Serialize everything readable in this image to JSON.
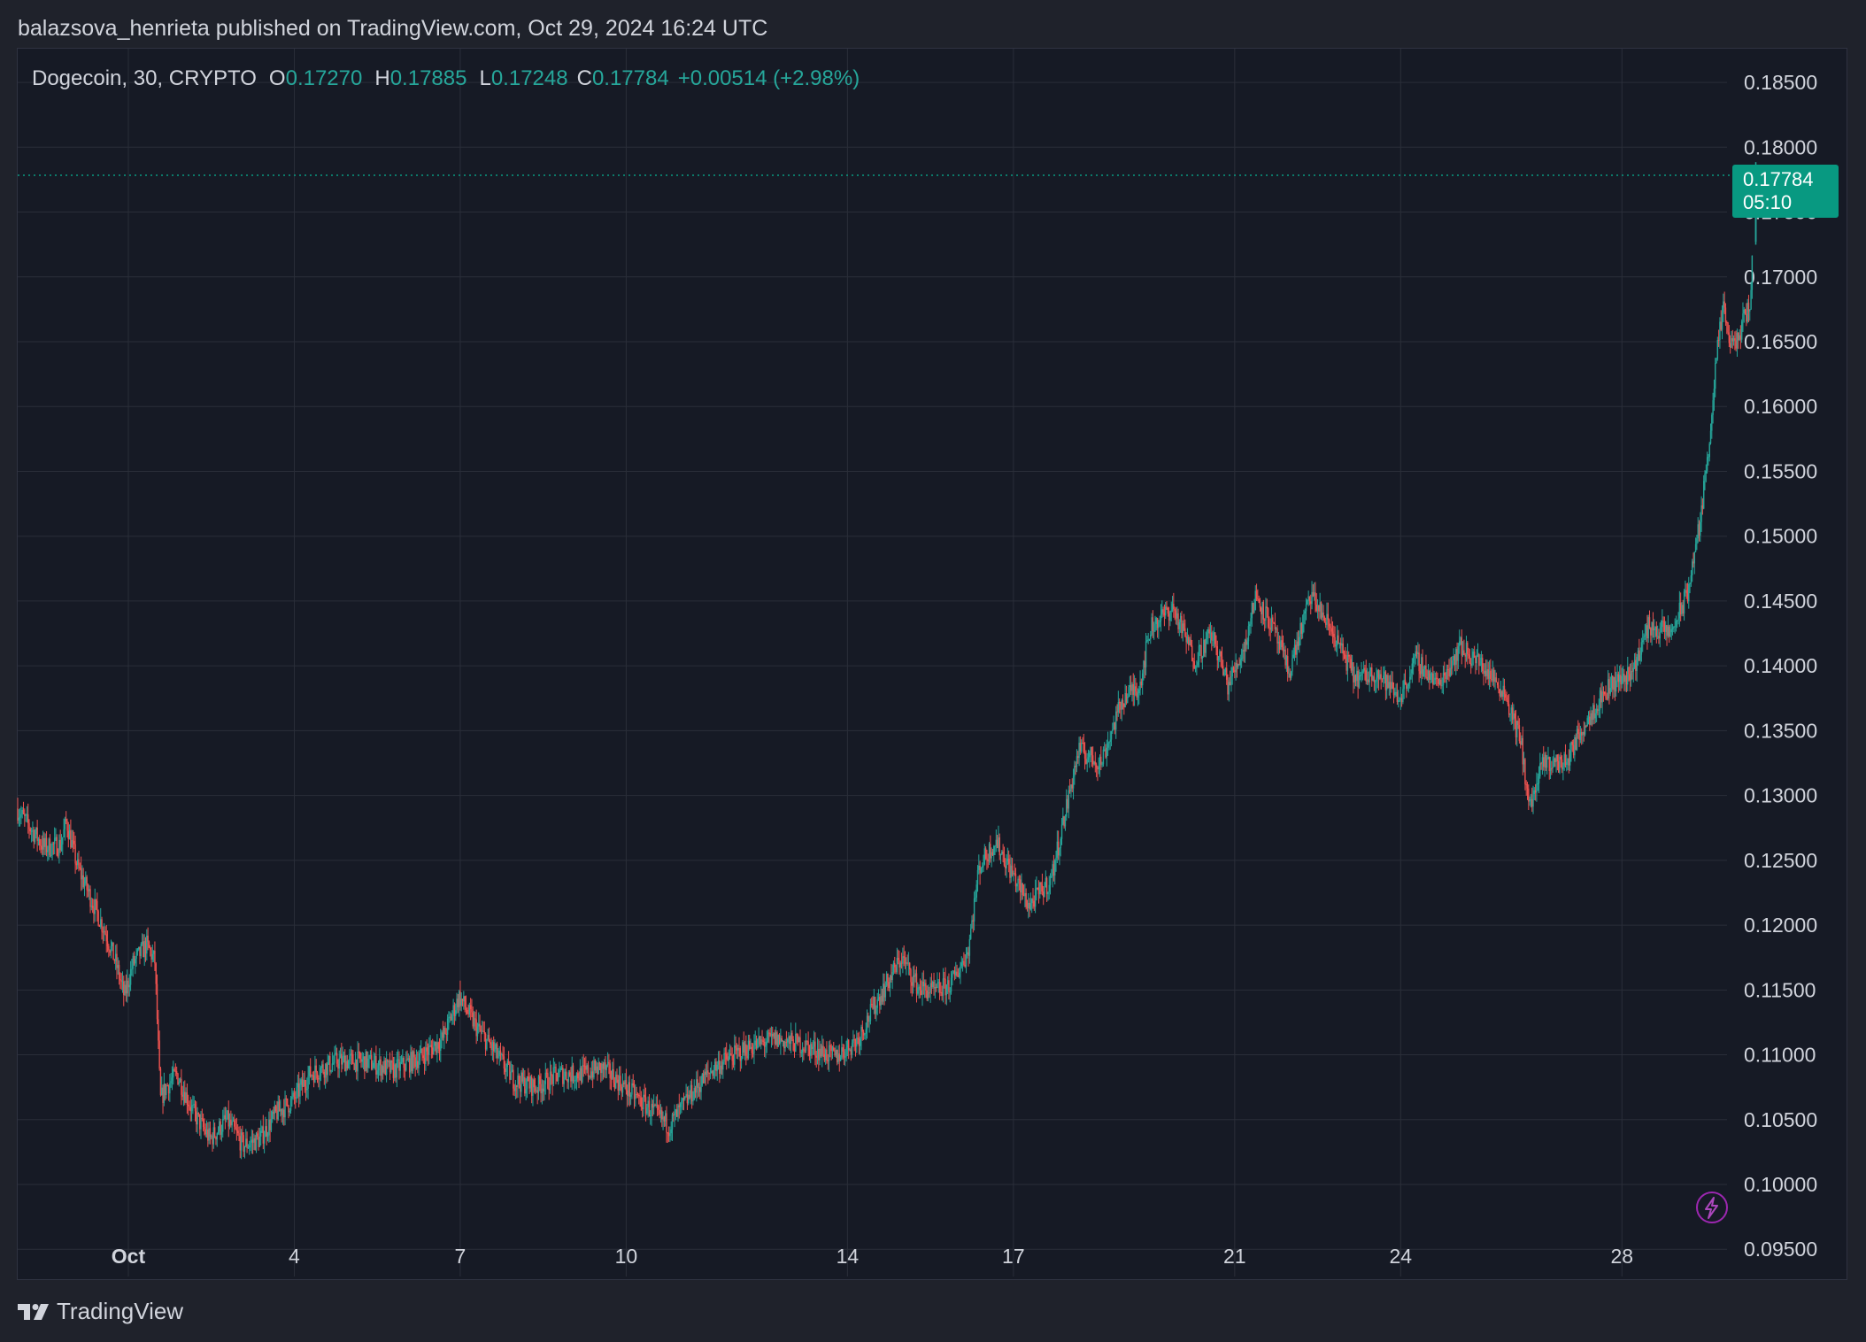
{
  "header": {
    "published_by": "balazsova_henrieta published on TradingView.com, Oct 29, 2024 16:24 UTC"
  },
  "legend": {
    "symbol": "Dogecoin, 30, CRYPTO",
    "open_key": "O",
    "open": "0.17270",
    "high_key": "H",
    "high": "0.17885",
    "low_key": "L",
    "low": "0.17248",
    "close_key": "C",
    "close": "0.17784",
    "change": "+0.00514 (+2.98%)"
  },
  "price_tag": {
    "price": "0.17784",
    "countdown": "05:10"
  },
  "brand": {
    "name": "TradingView"
  },
  "colors": {
    "up": "#26a69a",
    "down": "#ef5350",
    "background": "#161a25",
    "grid": "#2a2e39",
    "last_price": "#089981"
  },
  "chart_data": {
    "type": "candlestick",
    "interval": "30",
    "y_axis_ticks": [
      "0.18500",
      "0.18000",
      "0.17500",
      "0.17000",
      "0.16500",
      "0.16000",
      "0.15500",
      "0.15000",
      "0.14500",
      "0.14000",
      "0.13500",
      "0.13000",
      "0.12500",
      "0.12000",
      "0.11500",
      "0.11000",
      "0.10500",
      "0.10000",
      "0.09500"
    ],
    "ylim": [
      0.0929,
      0.1876
    ],
    "x_axis_ticks": [
      {
        "label": "Oct",
        "day": 1
      },
      {
        "label": "4",
        "day": 4
      },
      {
        "label": "7",
        "day": 7
      },
      {
        "label": "10",
        "day": 10
      },
      {
        "label": "14",
        "day": 14
      },
      {
        "label": "17",
        "day": 17
      },
      {
        "label": "21",
        "day": 21
      },
      {
        "label": "24",
        "day": 24
      },
      {
        "label": "28",
        "day": 28
      }
    ],
    "x_range_days": [
      -1.0,
      29.9
    ],
    "price_path": [
      [
        -1.0,
        0.129
      ],
      [
        -0.8,
        0.1278
      ],
      [
        -0.5,
        0.126
      ],
      [
        -0.2,
        0.1262
      ],
      [
        -0.1,
        0.128
      ],
      [
        0.1,
        0.1245
      ],
      [
        0.3,
        0.1225
      ],
      [
        0.6,
        0.1195
      ],
      [
        0.8,
        0.117
      ],
      [
        0.95,
        0.1145
      ],
      [
        1.1,
        0.117
      ],
      [
        1.35,
        0.1185
      ],
      [
        1.5,
        0.1172
      ],
      [
        1.6,
        0.1065
      ],
      [
        1.7,
        0.1075
      ],
      [
        1.9,
        0.1085
      ],
      [
        2.2,
        0.1055
      ],
      [
        2.5,
        0.1035
      ],
      [
        2.8,
        0.105
      ],
      [
        3.1,
        0.103
      ],
      [
        3.4,
        0.1035
      ],
      [
        3.7,
        0.1055
      ],
      [
        4.0,
        0.1065
      ],
      [
        4.3,
        0.1085
      ],
      [
        4.8,
        0.1095
      ],
      [
        5.3,
        0.1095
      ],
      [
        5.8,
        0.1088
      ],
      [
        6.3,
        0.1098
      ],
      [
        6.7,
        0.1112
      ],
      [
        7.0,
        0.1145
      ],
      [
        7.3,
        0.1122
      ],
      [
        7.6,
        0.1105
      ],
      [
        8.0,
        0.108
      ],
      [
        8.4,
        0.1075
      ],
      [
        8.8,
        0.1085
      ],
      [
        9.2,
        0.1085
      ],
      [
        9.6,
        0.109
      ],
      [
        10.0,
        0.1075
      ],
      [
        10.4,
        0.106
      ],
      [
        10.8,
        0.1045
      ],
      [
        11.2,
        0.107
      ],
      [
        11.6,
        0.109
      ],
      [
        12.2,
        0.1105
      ],
      [
        12.7,
        0.1112
      ],
      [
        13.2,
        0.1108
      ],
      [
        13.8,
        0.1098
      ],
      [
        14.2,
        0.1112
      ],
      [
        14.6,
        0.1145
      ],
      [
        15.0,
        0.1175
      ],
      [
        15.3,
        0.1152
      ],
      [
        15.6,
        0.1148
      ],
      [
        15.9,
        0.1155
      ],
      [
        16.2,
        0.118
      ],
      [
        16.4,
        0.1245
      ],
      [
        16.7,
        0.1265
      ],
      [
        17.0,
        0.124
      ],
      [
        17.3,
        0.1215
      ],
      [
        17.7,
        0.1235
      ],
      [
        17.9,
        0.1275
      ],
      [
        18.2,
        0.1335
      ],
      [
        18.6,
        0.1325
      ],
      [
        19.0,
        0.1375
      ],
      [
        19.3,
        0.1385
      ],
      [
        19.5,
        0.143
      ],
      [
        19.9,
        0.1445
      ],
      [
        20.3,
        0.1405
      ],
      [
        20.6,
        0.1425
      ],
      [
        20.9,
        0.1385
      ],
      [
        21.2,
        0.1415
      ],
      [
        21.4,
        0.1455
      ],
      [
        21.7,
        0.143
      ],
      [
        22.0,
        0.1395
      ],
      [
        22.4,
        0.1455
      ],
      [
        22.8,
        0.1425
      ],
      [
        23.2,
        0.139
      ],
      [
        23.6,
        0.1395
      ],
      [
        24.0,
        0.1375
      ],
      [
        24.3,
        0.1405
      ],
      [
        24.7,
        0.1385
      ],
      [
        25.1,
        0.1415
      ],
      [
        25.5,
        0.14
      ],
      [
        25.9,
        0.138
      ],
      [
        26.2,
        0.134
      ],
      [
        26.35,
        0.129
      ],
      [
        26.6,
        0.1325
      ],
      [
        27.0,
        0.1325
      ],
      [
        27.4,
        0.136
      ],
      [
        27.8,
        0.1385
      ],
      [
        28.2,
        0.1395
      ],
      [
        28.5,
        0.143
      ],
      [
        28.9,
        0.1425
      ],
      [
        29.2,
        0.1455
      ],
      [
        29.45,
        0.1515
      ],
      [
        29.6,
        0.1575
      ],
      [
        29.75,
        0.1645
      ],
      [
        29.85,
        0.1675
      ],
      [
        30.0,
        0.1645
      ],
      [
        30.15,
        0.1655
      ],
      [
        30.35,
        0.1685
      ],
      [
        30.42,
        0.1778
      ]
    ],
    "last_price": 0.17784
  }
}
